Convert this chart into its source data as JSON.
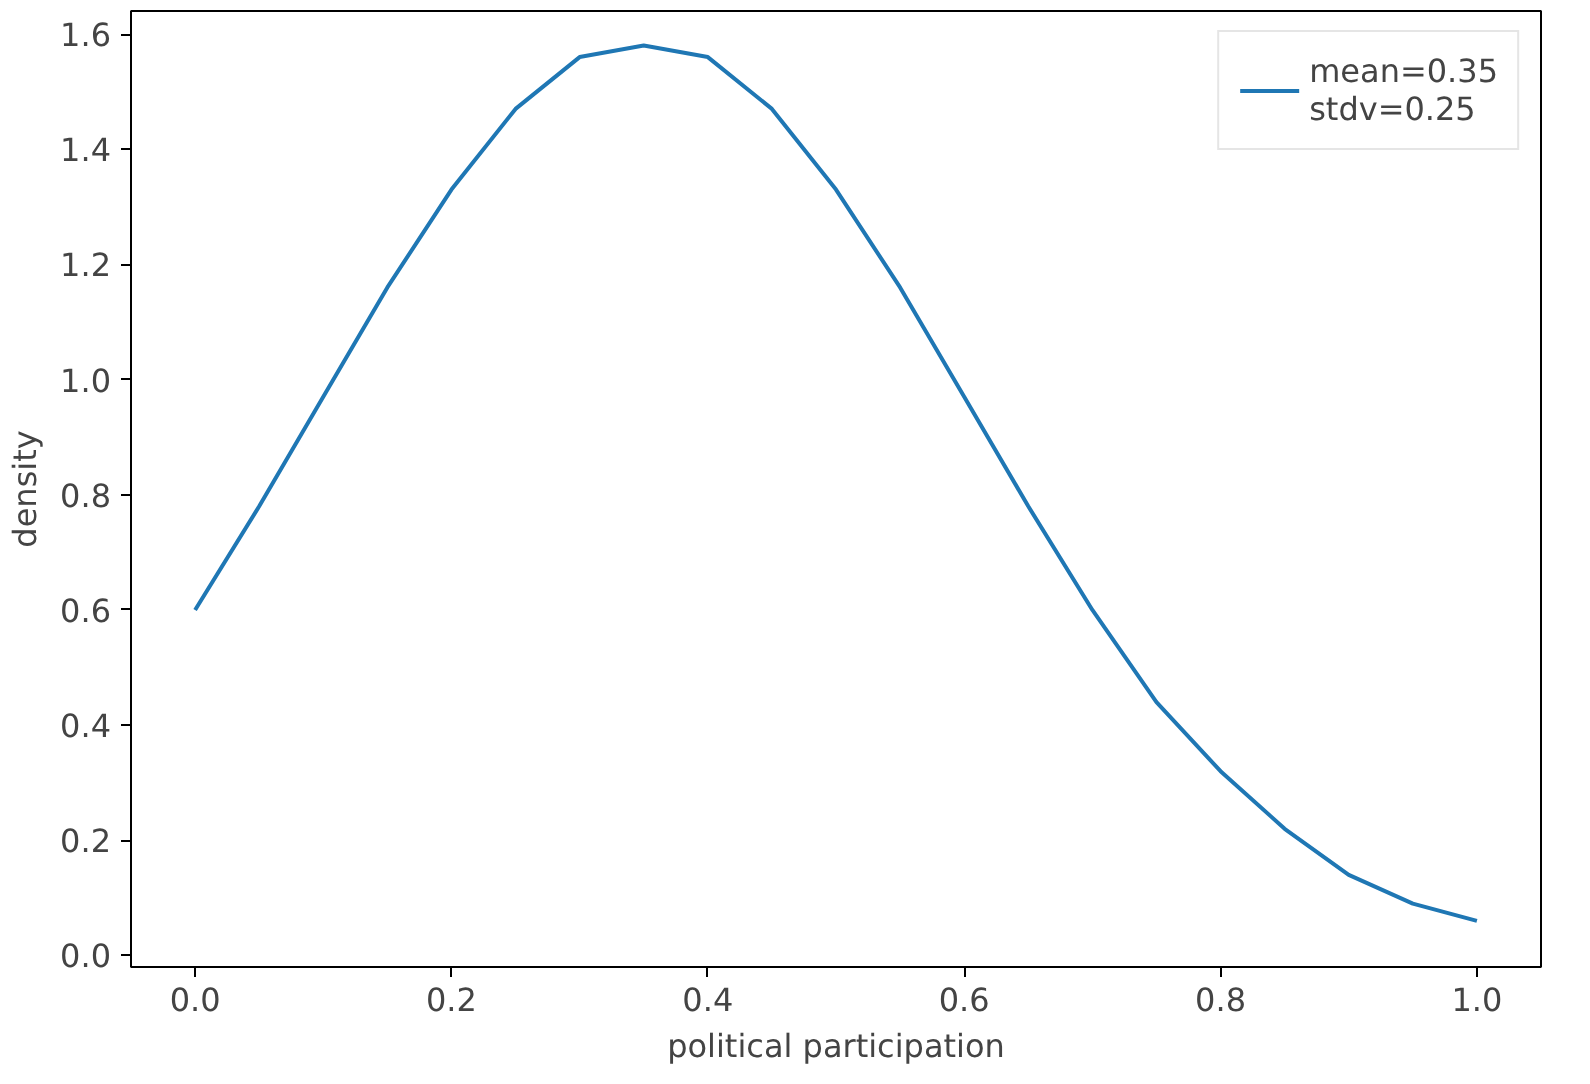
{
  "chart_data": {
    "type": "line",
    "xlabel": "political participation",
    "ylabel": "density",
    "x": [
      0,
      0.05,
      0.1,
      0.15,
      0.2,
      0.25,
      0.3,
      0.35,
      0.4,
      0.45,
      0.5,
      0.55,
      0.6,
      0.65,
      0.7,
      0.75,
      0.8,
      0.85,
      0.9,
      0.95,
      1.0
    ],
    "series": [
      {
        "name": "mean=0.35\nstdv=0.25",
        "color": "#1f77b4",
        "values": [
          0.6,
          0.78,
          0.97,
          1.16,
          1.33,
          1.47,
          1.56,
          1.58,
          1.56,
          1.47,
          1.33,
          1.16,
          0.97,
          0.78,
          0.6,
          0.44,
          0.32,
          0.22,
          0.14,
          0.09,
          0.06
        ]
      }
    ],
    "xlim": [
      -0.05,
      1.05
    ],
    "ylim": [
      -0.02,
      1.64
    ],
    "xticks": [
      {
        "value": 0,
        "label": "0.0"
      },
      0.2,
      0.4,
      0.6,
      0.8,
      {
        "value": 1,
        "label": "1.0"
      }
    ],
    "yticks": [
      {
        "value": 0,
        "label": "0.0"
      },
      0.2,
      0.4,
      0.6,
      0.8,
      {
        "value": 1,
        "label": "1.0"
      },
      1.2,
      1.4,
      1.6
    ],
    "grid": false,
    "legend": "top right",
    "marker": "none",
    "line_style": "solid"
  }
}
